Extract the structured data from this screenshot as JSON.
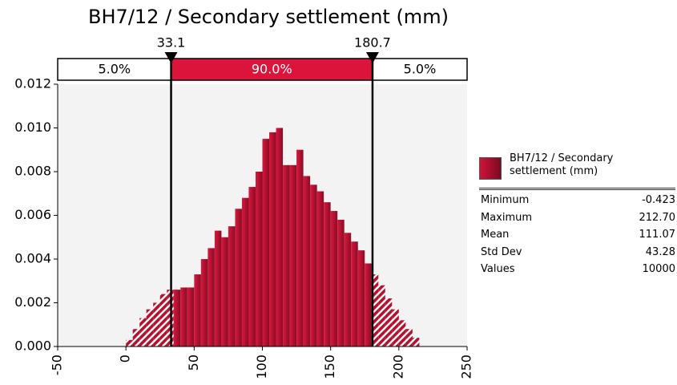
{
  "chart_data": {
    "type": "histogram",
    "title": "BH7/12 / Secondary settlement (mm)",
    "series_name": "BH7/12 / Secondary settlement (mm)",
    "color": "#c0102c",
    "bins": [
      0,
      5,
      10,
      15,
      20,
      25,
      30,
      35,
      40,
      45,
      50,
      55,
      60,
      65,
      70,
      75,
      80,
      85,
      90,
      95,
      100,
      105,
      110,
      115,
      120,
      125,
      130,
      135,
      140,
      145,
      150,
      155,
      160,
      165,
      170,
      175,
      180,
      185,
      190,
      195,
      200,
      205,
      210,
      215
    ],
    "values": [
      0.0003,
      0.0008,
      0.0013,
      0.0017,
      0.002,
      0.0024,
      0.0026,
      0.0026,
      0.0027,
      0.0027,
      0.0033,
      0.004,
      0.0045,
      0.0053,
      0.005,
      0.0055,
      0.0063,
      0.0068,
      0.0073,
      0.008,
      0.0095,
      0.0098,
      0.01,
      0.0083,
      0.0083,
      0.009,
      0.0078,
      0.0074,
      0.0071,
      0.0066,
      0.0062,
      0.0058,
      0.0052,
      0.0048,
      0.0044,
      0.0038,
      0.0033,
      0.0028,
      0.0022,
      0.0017,
      0.0012,
      0.0008,
      0.0004
    ],
    "xlim": [
      -50,
      250
    ],
    "xticks": [
      -50,
      0,
      50,
      100,
      150,
      200,
      250
    ],
    "ylim": [
      0,
      0.012
    ],
    "yticks": [
      {
        "value": 0,
        "label": "0.000"
      },
      {
        "value": 0.002,
        "label": "0.002"
      },
      {
        "value": 0.004,
        "label": "0.004"
      },
      {
        "value": 0.006,
        "label": "0.006"
      },
      {
        "value": 0.008,
        "label": "0.008"
      },
      {
        "value": 0.01,
        "label": "0.010"
      },
      {
        "value": 0.012,
        "label": "0.012"
      }
    ],
    "delimiters": [
      33.1,
      180.7
    ],
    "band_percents": {
      "values": [
        5,
        90,
        5
      ],
      "value_labels": [
        "5.0%",
        "90.0%",
        "5.0%"
      ]
    },
    "stats": [
      {
        "label": "Minimum",
        "value": "-0.423"
      },
      {
        "label": "Maximum",
        "value": "212.70"
      },
      {
        "label": "Mean",
        "value": "111.07"
      },
      {
        "label": "Std Dev",
        "value": "43.28"
      },
      {
        "label": "Values",
        "value": "10000"
      }
    ]
  }
}
